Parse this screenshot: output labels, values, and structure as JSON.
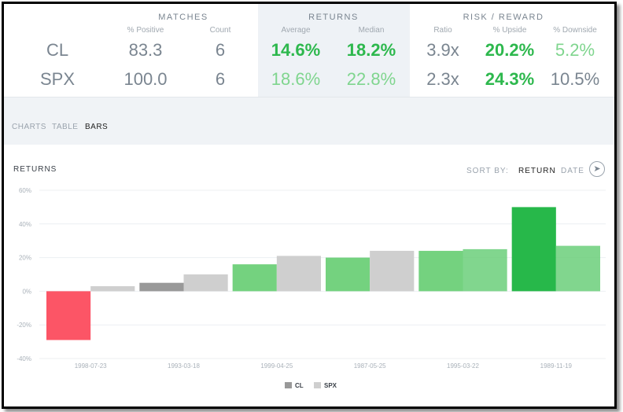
{
  "stats": {
    "groups": {
      "matches": "MATCHES",
      "returns": "RETURNS",
      "risk": "RISK / REWARD"
    },
    "subheads": {
      "positive": "% Positive",
      "count": "Count",
      "average": "Average",
      "median": "Median",
      "ratio": "Ratio",
      "upside": "% Upside",
      "downside": "% Downside"
    },
    "rows": [
      {
        "symbol": "CL",
        "positive": "83.3",
        "count": "6",
        "average": "14.6%",
        "median": "18.2%",
        "ratio": "3.9x",
        "upside": "20.2%",
        "downside": "5.2%"
      },
      {
        "symbol": "SPX",
        "positive": "100.0",
        "count": "6",
        "average": "18.6%",
        "median": "22.8%",
        "ratio": "2.3x",
        "upside": "24.3%",
        "downside": "10.5%"
      }
    ]
  },
  "tabs": [
    "CHARTS",
    "TABLE",
    "BARS"
  ],
  "active_tab": "BARS",
  "panel": {
    "title": "RETURNS",
    "sort_by_label": "SORT BY:",
    "sort_options": [
      "RETURN",
      "DATE"
    ],
    "active_sort": "RETURN",
    "go_icon": "arrow-circle-icon"
  },
  "colors": {
    "negative": "#fc5566",
    "cl_gray": "#999999",
    "spx_gray": "#cfcfcf",
    "green_1": "#74d27f",
    "green_2": "#6bcf7a",
    "green_dark": "#27b84a",
    "text_gray": "#7a8590"
  },
  "chart_data": {
    "type": "bar",
    "categories": [
      "1998-07-23",
      "1993-03-18",
      "1999-04-25",
      "1987-05-25",
      "1995-03-22",
      "1989-11-19"
    ],
    "series": [
      {
        "name": "CL",
        "values": [
          -29,
          5,
          16,
          20,
          24,
          50
        ]
      },
      {
        "name": "SPX",
        "values": [
          3,
          10,
          21,
          24,
          25,
          27
        ]
      }
    ],
    "ylim": [
      -40,
      60
    ],
    "yticks": [
      "-40%",
      "-20%",
      "0%",
      "20%",
      "40%",
      "60%"
    ],
    "legend_position": "bottom-center",
    "grid": true
  }
}
